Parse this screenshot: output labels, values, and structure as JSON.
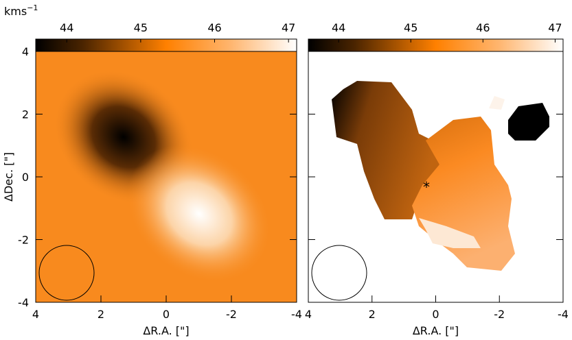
{
  "chart_data": [
    {
      "type": "image",
      "colorbar_label": "kms",
      "colorbar_label_sup": "−1",
      "clim": [
        43.58,
        47.11
      ],
      "cticks": [
        44,
        45,
        46,
        47
      ],
      "xlabel": "ΔR.A. [\"]",
      "ylabel": "ΔDec. [\"]",
      "xlim": [
        4,
        -4
      ],
      "ylim": [
        -4,
        4
      ],
      "xticks": [
        4,
        2,
        0,
        -2,
        -4
      ],
      "yticks": [
        -4,
        -2,
        0,
        2,
        4
      ]
    },
    {
      "type": "image",
      "clim": [
        43.58,
        47.11
      ],
      "cticks": [
        44,
        45,
        46,
        47
      ],
      "xlabel": "ΔR.A. [\"]",
      "xlim": [
        4,
        -4
      ],
      "ylim": [
        -4,
        4
      ],
      "xticks": [
        4,
        2,
        0,
        -2,
        -4
      ]
    }
  ]
}
